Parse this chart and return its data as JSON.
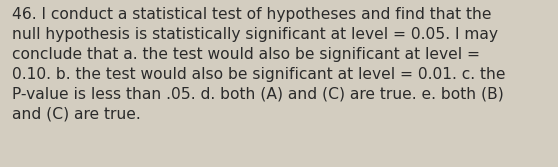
{
  "lines": [
    "46. I conduct a statistical test of hypotheses and find that the",
    "null hypothesis is statistically significant at level = 0.05. I may",
    "conclude that a. the test would also be significant at level =",
    "0.10. b. the test would also be significant at level = 0.01. c. the",
    "P-value is less than .05. d. both (A) and (C) are true. e. both (B)",
    "and (C) are true."
  ],
  "background_color": "#d3cdc0",
  "text_color": "#2b2b2b",
  "font_size": 11.2,
  "fig_width": 5.58,
  "fig_height": 1.67,
  "dpi": 100
}
